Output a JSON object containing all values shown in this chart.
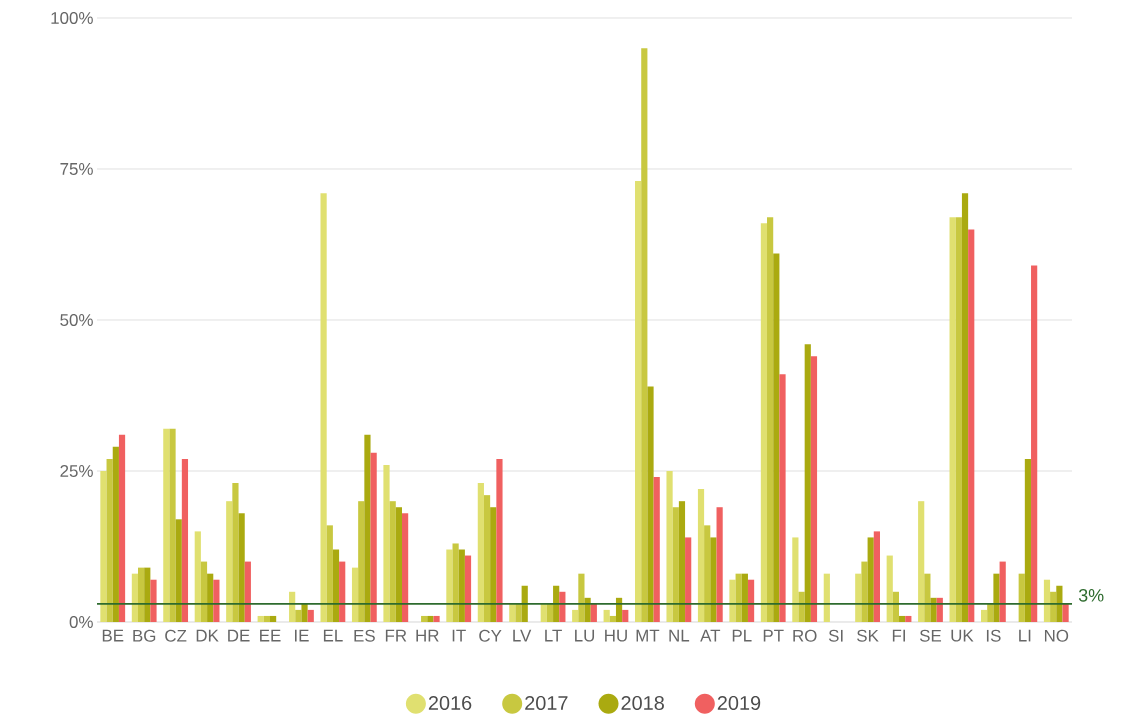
{
  "chart_data": {
    "type": "bar",
    "categories": [
      "BE",
      "BG",
      "CZ",
      "DK",
      "DE",
      "EE",
      "IE",
      "EL",
      "ES",
      "FR",
      "HR",
      "IT",
      "CY",
      "LV",
      "LT",
      "LU",
      "HU",
      "MT",
      "NL",
      "AT",
      "PL",
      "PT",
      "RO",
      "SI",
      "SK",
      "FI",
      "SE",
      "UK",
      "IS",
      "LI",
      "NO"
    ],
    "series": [
      {
        "name": "2016",
        "color": "#e0e070",
        "values": [
          25,
          8,
          32,
          15,
          20,
          1,
          5,
          71,
          9,
          26,
          null,
          12,
          23,
          3,
          3,
          2,
          2,
          73,
          25,
          22,
          7,
          66,
          14,
          8,
          8,
          11,
          20,
          67,
          2,
          null,
          7
        ]
      },
      {
        "name": "2017",
        "color": "#c8c840",
        "values": [
          27,
          9,
          32,
          10,
          23,
          1,
          2,
          16,
          20,
          20,
          1,
          13,
          21,
          3,
          3,
          8,
          1,
          95,
          19,
          16,
          8,
          67,
          5,
          null,
          10,
          5,
          8,
          67,
          3,
          8,
          5
        ]
      },
      {
        "name": "2018",
        "color": "#aaaa10",
        "values": [
          29,
          9,
          17,
          8,
          18,
          1,
          3,
          12,
          31,
          19,
          1,
          12,
          19,
          6,
          6,
          4,
          4,
          39,
          20,
          14,
          8,
          61,
          46,
          null,
          14,
          1,
          4,
          71,
          8,
          27,
          6
        ]
      },
      {
        "name": "2019",
        "color": "#f06060",
        "values": [
          31,
          7,
          27,
          7,
          10,
          null,
          2,
          10,
          28,
          18,
          1,
          11,
          27,
          null,
          5,
          3,
          2,
          24,
          14,
          19,
          7,
          41,
          44,
          null,
          15,
          1,
          4,
          65,
          10,
          59,
          3
        ]
      }
    ],
    "ylim": [
      0,
      100
    ],
    "yticks": [
      {
        "value": 0,
        "label": "0%"
      },
      {
        "value": 25,
        "label": "25%"
      },
      {
        "value": 50,
        "label": "50%"
      },
      {
        "value": 75,
        "label": "75%"
      },
      {
        "value": 100,
        "label": "100%"
      }
    ],
    "grid": "y",
    "legend": "bottom",
    "ref_lines": [
      {
        "axis": "y",
        "value": 3,
        "label": "3%",
        "color": "#2e6b2e"
      }
    ]
  }
}
